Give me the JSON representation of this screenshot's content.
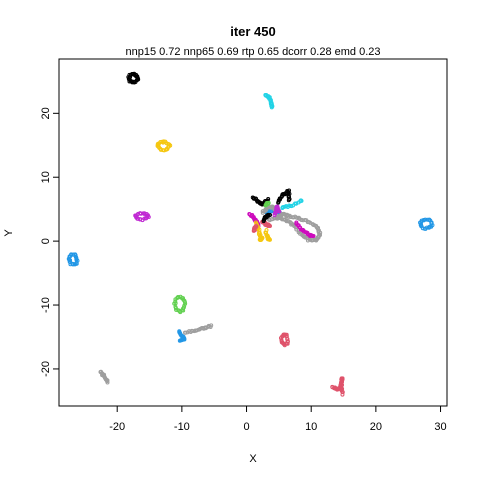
{
  "chart_data": {
    "type": "scatter",
    "title": "iter 450",
    "subtitle": "nnp15 0.72 nnp65 0.69 rtp 0.65 dcorr 0.28 emd 0.23",
    "xlabel": "X",
    "ylabel": "Y",
    "xlim": [
      -29,
      31
    ],
    "ylim": [
      -25.8,
      28.5
    ],
    "xticks": [
      -20,
      -10,
      0,
      10,
      20,
      30
    ],
    "yticks": [
      -20,
      -10,
      0,
      10,
      20
    ],
    "grid": false,
    "legend": "none",
    "series": [
      {
        "color": "#000000",
        "shape": "ring",
        "cx": -17.5,
        "cy": 25.5,
        "rx": 0.7,
        "ry": 0.6
      },
      {
        "color": "#22D3E6",
        "shape": "stroke",
        "points": [
          [
            3.0,
            22.8
          ],
          [
            3.5,
            22.5
          ],
          [
            3.8,
            21.8
          ],
          [
            4.0,
            21.0
          ]
        ]
      },
      {
        "color": "#F5C710",
        "shape": "ring",
        "cx": -12.8,
        "cy": 14.9,
        "rx": 0.9,
        "ry": 0.6
      },
      {
        "color": "#C02BD3",
        "shape": "ring",
        "cx": -16.2,
        "cy": 3.9,
        "rx": 1.0,
        "ry": 0.5
      },
      {
        "color": "#2297E6",
        "shape": "ring",
        "cx": -26.8,
        "cy": -2.9,
        "rx": 0.6,
        "ry": 0.8
      },
      {
        "color": "#2297E6",
        "shape": "ring",
        "cx": 27.8,
        "cy": 2.7,
        "rx": 0.9,
        "ry": 0.7
      },
      {
        "color": "#61D04F",
        "shape": "ring",
        "cx": -10.3,
        "cy": -9.9,
        "rx": 0.8,
        "ry": 1.1
      },
      {
        "color": "#2297E6",
        "shape": "stroke",
        "points": [
          [
            -10.4,
            -14.1
          ],
          [
            -10.0,
            -14.8
          ],
          [
            -9.6,
            -15.3
          ],
          [
            -10.2,
            -15.6
          ]
        ]
      },
      {
        "color": "#9E9E9E",
        "shape": "stroke",
        "points": [
          [
            -9.5,
            -14.3
          ],
          [
            -8.0,
            -14.0
          ],
          [
            -6.5,
            -13.6
          ],
          [
            -5.5,
            -13.3
          ]
        ]
      },
      {
        "color": "#DF536B",
        "shape": "ring",
        "cx": 5.9,
        "cy": -15.4,
        "rx": 0.5,
        "ry": 0.8
      },
      {
        "color": "#9E9E9E",
        "shape": "stroke",
        "points": [
          [
            -22.6,
            -20.4
          ],
          [
            -22.0,
            -21.2
          ],
          [
            -21.4,
            -22.1
          ]
        ]
      },
      {
        "color": "#DF536B",
        "shape": "stroke",
        "points": [
          [
            13.3,
            -22.8
          ],
          [
            14.0,
            -23.2
          ],
          [
            14.6,
            -22.7
          ],
          [
            14.8,
            -21.4
          ],
          [
            14.6,
            -22.7
          ],
          [
            14.9,
            -23.9
          ]
        ]
      },
      {
        "color": "#000000",
        "shape": "stroke",
        "points": [
          [
            1.0,
            6.8
          ],
          [
            1.8,
            6.2
          ],
          [
            2.5,
            5.8
          ],
          [
            3.3,
            6.5
          ]
        ]
      },
      {
        "color": "#000000",
        "shape": "stroke",
        "points": [
          [
            4.8,
            6.0
          ],
          [
            5.5,
            7.2
          ],
          [
            6.5,
            7.8
          ],
          [
            6.6,
            6.4
          ]
        ]
      },
      {
        "color": "#22D3E6",
        "shape": "stroke",
        "points": [
          [
            5.5,
            5.2
          ],
          [
            7.0,
            5.6
          ],
          [
            8.6,
            6.4
          ]
        ]
      },
      {
        "color": "#CD0BBC",
        "shape": "stroke",
        "points": [
          [
            0.5,
            4.2
          ],
          [
            1.2,
            3.6
          ],
          [
            1.8,
            2.6
          ],
          [
            1.6,
            1.8
          ]
        ]
      },
      {
        "color": "#F5C710",
        "shape": "stroke",
        "points": [
          [
            1.5,
            3.0
          ],
          [
            2.0,
            1.2
          ],
          [
            2.4,
            0.4
          ],
          [
            2.0,
            0.2
          ]
        ]
      },
      {
        "color": "#F5C710",
        "shape": "stroke",
        "points": [
          [
            3.0,
            1.6
          ],
          [
            3.3,
            0.5
          ],
          [
            3.6,
            0.1
          ]
        ]
      },
      {
        "color": "#DF536B",
        "shape": "stroke",
        "points": [
          [
            2.4,
            3.1
          ],
          [
            3.0,
            2.6
          ],
          [
            3.6,
            2.4
          ]
        ]
      },
      {
        "color": "#2297E6",
        "shape": "stroke",
        "points": [
          [
            3.0,
            4.5
          ],
          [
            3.8,
            4.7
          ],
          [
            4.5,
            5.0
          ],
          [
            5.2,
            4.3
          ]
        ]
      },
      {
        "color": "#9E9E9E",
        "shape": "stroke",
        "points": [
          [
            3.5,
            3.3
          ],
          [
            5.0,
            3.9
          ],
          [
            5.8,
            4.2
          ],
          [
            6.5,
            3.9
          ],
          [
            8.0,
            3.6
          ],
          [
            9.6,
            3.0
          ],
          [
            11.0,
            2.2
          ],
          [
            11.4,
            1.0
          ],
          [
            10.8,
            0.1
          ],
          [
            9.6,
            0.2
          ],
          [
            8.5,
            1.0
          ],
          [
            7.6,
            2.2
          ],
          [
            6.6,
            3.0
          ],
          [
            5.4,
            3.6
          ],
          [
            4.2,
            3.6
          ]
        ]
      },
      {
        "color": "#CD0BBC",
        "shape": "stroke",
        "points": [
          [
            7.6,
            2.8
          ],
          [
            8.6,
            1.8
          ],
          [
            9.6,
            1.0
          ],
          [
            10.4,
            0.8
          ]
        ]
      },
      {
        "color": "#9E9E9E",
        "shape": "stroke",
        "points": [
          [
            2.5,
            4.5
          ],
          [
            3.2,
            5.2
          ],
          [
            4.0,
            5.4
          ],
          [
            4.6,
            4.9
          ]
        ]
      },
      {
        "color": "#000000",
        "shape": "stroke",
        "points": [
          [
            2.6,
            3.2
          ],
          [
            3.0,
            3.8
          ],
          [
            3.6,
            4.2
          ]
        ]
      },
      {
        "color": "#C02BD3",
        "shape": "stroke",
        "points": [
          [
            4.4,
            4.1
          ],
          [
            4.7,
            5.4
          ],
          [
            5.0,
            4.6
          ]
        ]
      },
      {
        "color": "#61D04F",
        "shape": "stroke",
        "points": [
          [
            3.0,
            5.6
          ],
          [
            3.4,
            6.0
          ]
        ]
      },
      {
        "color": "#DF536B",
        "shape": "stroke",
        "points": [
          [
            1.0,
            1.6
          ],
          [
            1.5,
            2.4
          ]
        ]
      }
    ]
  }
}
